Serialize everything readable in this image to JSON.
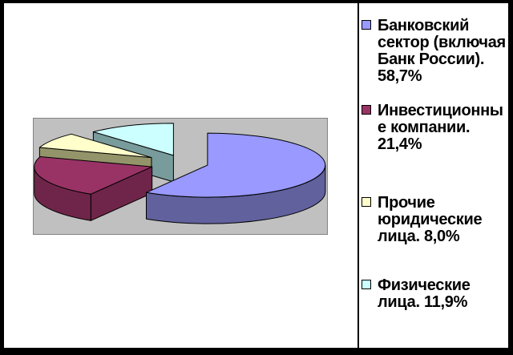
{
  "window": {
    "background": "#ffffff",
    "frame_color": "#000000",
    "plot_border_color": "#848284"
  },
  "chart_data": {
    "type": "pie",
    "style": "3d-exploded-pie",
    "title": "",
    "labels": [
      "Банковский сектор (включая Банк России)",
      "Инвестиционные компании",
      "Прочие юридические лица",
      "Физические лица"
    ],
    "values": [
      58.7,
      21.4,
      8.0,
      11.9
    ],
    "value_labels": [
      "58,7%",
      "21,4%",
      "8,0%",
      "11,9%"
    ],
    "colors": [
      "#9999FF",
      "#993366",
      "#FFFFCC",
      "#CCFFFF"
    ],
    "side_colors": [
      "#61619E",
      "#6F2549",
      "#94946A",
      "#789B9C"
    ],
    "plot_background": "#C0C0C0",
    "legend_position": "right",
    "start_angle_deg": 0,
    "direction": "clockwise"
  },
  "legend": {
    "items": [
      {
        "text": "Банковский\nсектор (включая\nБанк России).\n58,7%"
      },
      {
        "text": "Инвестиционны\nе компании.\n21,4%"
      },
      {
        "text": "Прочие\nюридические\nлица. 8,0%"
      },
      {
        "text": "Физические\nлица. 11,9%"
      }
    ]
  }
}
